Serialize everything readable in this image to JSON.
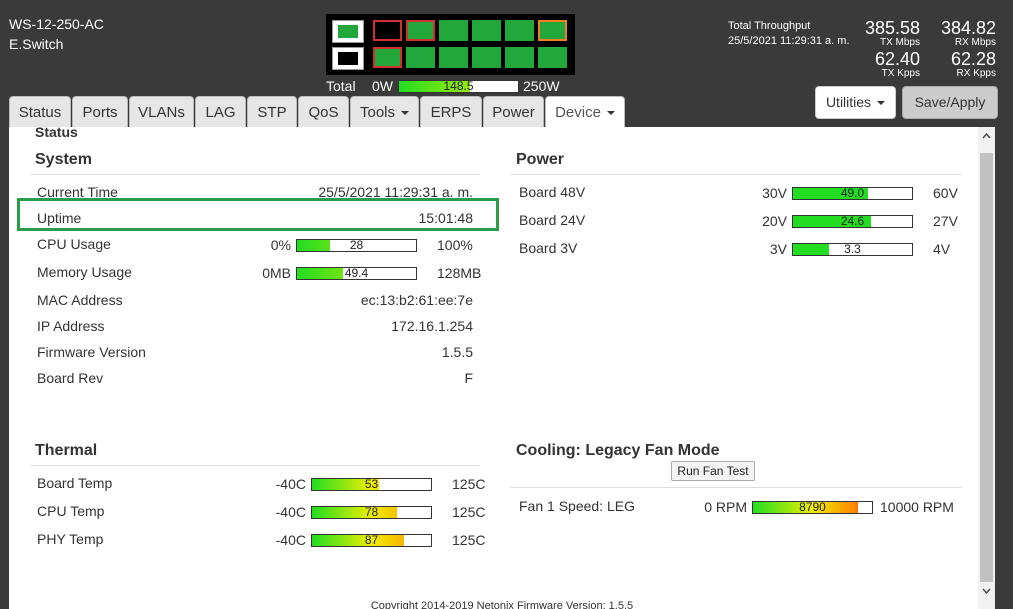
{
  "header": {
    "model": "WS-12-250-AC",
    "name": "E.Switch",
    "power": {
      "label": "Total",
      "min": {
        "value": 0,
        "label": "0W"
      },
      "max": {
        "value": 250,
        "label": "250W"
      },
      "value": 148.5
    },
    "throughput": {
      "title": "Total Throughput",
      "time": "25/5/2021 11:29:31 a. m.",
      "tx_mbps": {
        "value": "385.58",
        "unit": "TX Mbps"
      },
      "rx_mbps": {
        "value": "384.82",
        "unit": "RX Mbps"
      },
      "tx_kpps": {
        "value": "62.40",
        "unit": "TX Kpps"
      },
      "rx_kpps": {
        "value": "62.28",
        "unit": "RX Kpps"
      }
    }
  },
  "tabs": [
    "Status",
    "Ports",
    "VLANs",
    "LAG",
    "STP",
    "QoS",
    "Tools",
    "ERPS",
    "Power",
    "Device"
  ],
  "buttons": [
    "Utilities",
    "Save/Apply"
  ],
  "page_title": "Status",
  "system": {
    "title": "System",
    "rows": [
      {
        "label": "Current Time",
        "value": "25/5/2021 11:29:31 a. m."
      },
      {
        "label": "Uptime",
        "value": "15:01:48"
      },
      {
        "label": "CPU Usage",
        "min": {
          "value": 0,
          "label": "0%"
        },
        "max": {
          "value": 100,
          "label": "100%"
        },
        "value": 28
      },
      {
        "label": "Memory Usage",
        "min": {
          "value": 0,
          "label": "0MB"
        },
        "max": {
          "value": 128,
          "label": "128MB"
        },
        "value": 49.4
      },
      {
        "label": "MAC Address",
        "value": "ec:13:b2:61:ee:7e"
      },
      {
        "label": "IP Address",
        "value": "172.16.1.254"
      },
      {
        "label": "Firmware Version",
        "value": "1.5.5"
      },
      {
        "label": "Board Rev",
        "value": "F"
      }
    ]
  },
  "power": {
    "title": "Power",
    "rows": [
      {
        "label": "Board 48V",
        "min": {
          "value": 30,
          "label": "30V"
        },
        "max": {
          "value": 60,
          "label": "60V"
        },
        "value": 49,
        "value_label": "49.0"
      },
      {
        "label": "Board 24V",
        "min": {
          "value": 20,
          "label": "20V"
        },
        "max": {
          "value": 27,
          "label": "27V"
        },
        "value": 24.6
      },
      {
        "label": "Board 3V",
        "min": {
          "value": 3,
          "label": "3V"
        },
        "max": {
          "value": 4,
          "label": "4V"
        },
        "value": 3.3
      }
    ]
  },
  "thermal": {
    "title": "Thermal",
    "rows": [
      {
        "label": "Board Temp",
        "min": {
          "value": -40,
          "label": "-40C"
        },
        "max": {
          "value": 125,
          "label": "125C"
        },
        "value": 53
      },
      {
        "label": "CPU Temp",
        "min": {
          "value": -40,
          "label": "-40C"
        },
        "max": {
          "value": 125,
          "label": "125C"
        },
        "value": 78
      },
      {
        "label": "PHY Temp",
        "min": {
          "value": -40,
          "label": "-40C"
        },
        "max": {
          "value": 125,
          "label": "125C"
        },
        "value": 87
      }
    ]
  },
  "cooling": {
    "title": "Cooling: Legacy Fan Mode",
    "button": "Run Fan Test",
    "rows": [
      {
        "label": "Fan 1 Speed: LEG",
        "min": {
          "value": 0,
          "label": "0 RPM"
        },
        "max": {
          "value": 10000,
          "label": "10000 RPM"
        },
        "value": 8790
      }
    ]
  },
  "footer": "Copyright 2014-2019 Netonix    Firmware Version: 1.5.5"
}
